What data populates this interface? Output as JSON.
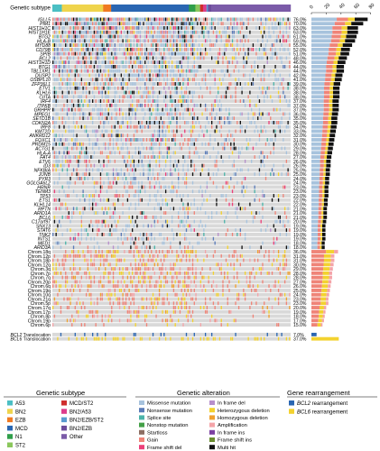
{
  "chart_data": {
    "type": "heatmap",
    "subtitle_row_label": "Genetic subtype",
    "subtype_segments": [
      {
        "subtype": "A53",
        "n": 6
      },
      {
        "subtype": "BN2",
        "n": 26
      },
      {
        "subtype": "EZB",
        "n": 5
      },
      {
        "subtype": "MCD",
        "n": 49
      },
      {
        "subtype": "N1",
        "n": 4
      },
      {
        "subtype": "ST2",
        "n": 3
      },
      {
        "subtype": "MCD/ST2",
        "n": 2
      },
      {
        "subtype": "BN2/A53",
        "n": 2
      },
      {
        "subtype": "BN2/EZB/ST2",
        "n": 1
      },
      {
        "subtype": "BN2/EZB",
        "n": 2
      },
      {
        "subtype": "Other",
        "n": 50
      }
    ],
    "genes": [
      {
        "name": "IGLL5",
        "pct": "76.0%"
      },
      {
        "name": "PIM1",
        "pct": "70.0%"
      },
      {
        "name": "HIST1H1C",
        "pct": "63.0%"
      },
      {
        "name": "HIST1H1E",
        "pct": "63.0%"
      },
      {
        "name": "BTG2",
        "pct": "61.0%"
      },
      {
        "name": "HLA-B",
        "pct": "59.0%"
      },
      {
        "name": "MYD88",
        "pct": "55.0%"
      },
      {
        "name": "CD79B",
        "pct": "52.0%"
      },
      {
        "name": "SPIB",
        "pct": "51.0%"
      },
      {
        "name": "BCL2",
        "pct": "48.0%"
      },
      {
        "name": "HIST1H1D",
        "pct": "46.0%"
      },
      {
        "name": "BTG1",
        "pct": "44.0%"
      },
      {
        "name": "TBL1XR1",
        "pct": "44.0%"
      },
      {
        "name": "DUSP2",
        "pct": "42.0%"
      },
      {
        "name": "OSBPL10",
        "pct": "41.0%"
      },
      {
        "name": "ZFP36L1",
        "pct": "39.0%"
      },
      {
        "name": "ETV1",
        "pct": "38.0%"
      },
      {
        "name": "KLHL6",
        "pct": "38.0%"
      },
      {
        "name": "CIITA",
        "pct": "38.0%"
      },
      {
        "name": "IRF4",
        "pct": "37.0%"
      },
      {
        "name": "ITPKB",
        "pct": "37.0%"
      },
      {
        "name": "GRHPR",
        "pct": "37.0%"
      },
      {
        "name": "MPEG1",
        "pct": "36.0%"
      },
      {
        "name": "SETD1B",
        "pct": "35.0%"
      },
      {
        "name": "CDKN2A",
        "pct": "35.0%"
      },
      {
        "name": "IRF8",
        "pct": "34.0%"
      },
      {
        "name": "KMT2D",
        "pct": "33.0%"
      },
      {
        "name": "ANKRD12",
        "pct": "32.0%"
      },
      {
        "name": "FOXC1",
        "pct": "31.0%"
      },
      {
        "name": "PRDM15",
        "pct": "30.0%"
      },
      {
        "name": "ACTG1",
        "pct": "29.0%"
      },
      {
        "name": "HLA-A",
        "pct": "28.0%"
      },
      {
        "name": "FAT4",
        "pct": "27.0%"
      },
      {
        "name": "ETV6",
        "pct": "26.0%"
      },
      {
        "name": "ID3",
        "pct": "26.0%"
      },
      {
        "name": "NFKBIA",
        "pct": "25.0%"
      },
      {
        "name": "JUNB",
        "pct": "25.0%"
      },
      {
        "name": "PYR3",
        "pct": "24.0%"
      },
      {
        "name": "GOLGA6L2",
        "pct": "24.0%"
      },
      {
        "name": "HRNR",
        "pct": "23.0%"
      },
      {
        "name": "TENM3",
        "pct": "23.0%"
      },
      {
        "name": "TP53",
        "pct": "23.0%"
      },
      {
        "name": "ETS1",
        "pct": "22.0%"
      },
      {
        "name": "KLHL14",
        "pct": "22.0%"
      },
      {
        "name": "RPTN",
        "pct": "21.0%"
      },
      {
        "name": "ARID1A",
        "pct": "21.0%"
      },
      {
        "name": "BCL6",
        "pct": "21.0%"
      },
      {
        "name": "C17orf97",
        "pct": "20.0%"
      },
      {
        "name": "SNX13",
        "pct": "19.0%"
      },
      {
        "name": "STAT6",
        "pct": "19.0%"
      },
      {
        "name": "TNK2",
        "pct": "19.0%"
      },
      {
        "name": "INTS1",
        "pct": "19.0%"
      },
      {
        "name": "MED1",
        "pct": "18.0%"
      },
      {
        "name": "ARID3A",
        "pct": "18.0%"
      }
    ],
    "chromosomes": [
      {
        "name": "Chrom.18q",
        "pct": "36.0%"
      },
      {
        "name": "Chrom.12p",
        "pct": "31.0%"
      },
      {
        "name": "Chrom.18p",
        "pct": "31.0%"
      },
      {
        "name": "Chrom.12q",
        "pct": "30.0%"
      },
      {
        "name": "Chrom.3q",
        "pct": "29.0%"
      },
      {
        "name": "Chrom.7p",
        "pct": "28.0%"
      },
      {
        "name": "Chrom.7q",
        "pct": "28.0%"
      },
      {
        "name": "Chrom.20p",
        "pct": "27.0%"
      },
      {
        "name": "Chrom.6q",
        "pct": "26.0%"
      },
      {
        "name": "Chrom.19q",
        "pct": "25.0%"
      },
      {
        "name": "Chrom.10q",
        "pct": "24.0%"
      },
      {
        "name": "Chrom.21q",
        "pct": "23.0%"
      },
      {
        "name": "Chrom.5p",
        "pct": "23.0%"
      },
      {
        "name": "Chrom.17q",
        "pct": "20.0%"
      },
      {
        "name": "Chrom.17p",
        "pct": "19.0%"
      },
      {
        "name": "Chrom.8p",
        "pct": "18.0%"
      },
      {
        "name": "Chrom.19p",
        "pct": "17.0%"
      },
      {
        "name": "Chrom.6p",
        "pct": "15.0%"
      }
    ],
    "translocations": [
      {
        "name": "BCL2",
        "suffix": " Translocation",
        "pct": "7.0%"
      },
      {
        "name": "BCL6",
        "suffix": " Translocation",
        "pct": "37.0%"
      }
    ],
    "top_axis_ticks": [
      "0",
      "20",
      "40",
      "60",
      "80"
    ],
    "legend_subtype": {
      "title": "Genetic subtype",
      "items": [
        {
          "label": "A53",
          "color": "#4bbfc4"
        },
        {
          "label": "MCD/ST2",
          "color": "#cf2e2e"
        },
        {
          "label": "BN2",
          "color": "#efd44c"
        },
        {
          "label": "BN2/A53",
          "color": "#dd3c8c"
        },
        {
          "label": "EZB",
          "color": "#f07a22"
        },
        {
          "label": "BN2/EZB/ST2",
          "color": "#5a9bd0"
        },
        {
          "label": "MCD",
          "color": "#2a66b2"
        },
        {
          "label": "BN2/EZB",
          "color": "#6d4c9b"
        },
        {
          "label": "N1",
          "color": "#2f9e4a"
        },
        {
          "label": "Other",
          "color": "#7b5ba8"
        },
        {
          "label": "ST2",
          "color": "#8bc75c"
        }
      ]
    },
    "legend_alteration": {
      "title": "Genetic alteration",
      "items": [
        {
          "label": "Missense mutation",
          "color": "#a7c3dd"
        },
        {
          "label": "In frame del",
          "color": "#b78fcb"
        },
        {
          "label": "Nonsense mutation",
          "color": "#5a7bb8"
        },
        {
          "label": "Heterozygous deletion",
          "color": "#f3d22f"
        },
        {
          "label": "Splice site",
          "color": "#4bb3a9"
        },
        {
          "label": "Homozygous deletion",
          "color": "#f0a12e"
        },
        {
          "label": "Nonstop mutation",
          "color": "#43a047"
        },
        {
          "label": "Amplification",
          "color": "#f4a4a8"
        },
        {
          "label": "Startloss",
          "color": "#8d6e63"
        },
        {
          "label": "In frame ins",
          "color": "#7b3fa0"
        },
        {
          "label": "Gain",
          "color": "#ef8478"
        },
        {
          "label": "Frame shift ins",
          "color": "#6a8d2f"
        },
        {
          "label": "Frame shift del",
          "color": "#ec407a"
        },
        {
          "label": "Multi hit",
          "color": "#111111"
        }
      ]
    },
    "legend_rearrangement": {
      "title": "Gene rearrangement",
      "items": [
        {
          "label": "BCL2",
          "suffix": " rearrangement",
          "color": "#2a66b2"
        },
        {
          "label": "BCL6",
          "suffix": " rearrangement",
          "color": "#f3d22f"
        }
      ]
    }
  }
}
